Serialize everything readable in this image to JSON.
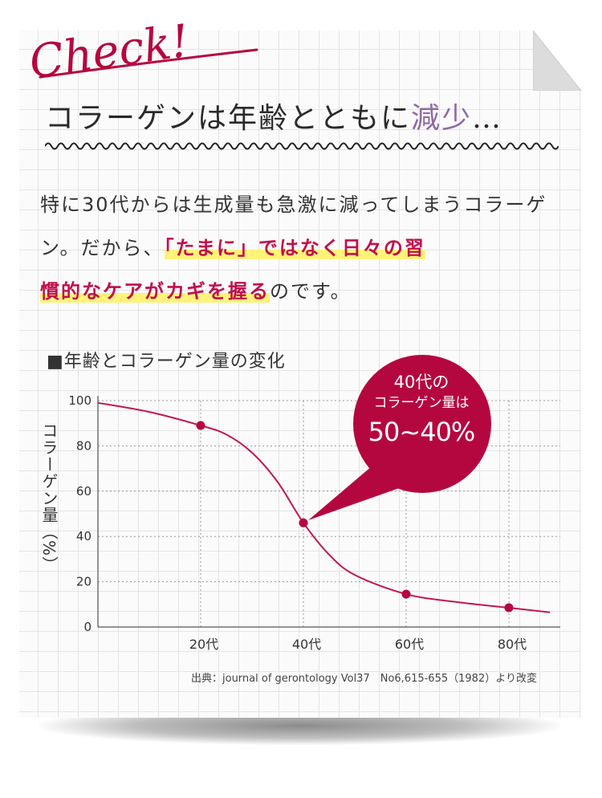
{
  "header": {
    "check_label": "Check!",
    "title_main": "コラーゲンは年齢とともに",
    "title_accent": "減少",
    "title_end": "…"
  },
  "body": {
    "line1": "特に30代からは生成量も急激に減ってしまうコラーゲン。だから、",
    "highlight1": "「たまに」ではなく日々の習",
    "highlight2": "慣的なケアがカギを握る",
    "line_end": "のです。"
  },
  "chart_heading": "■年齢とコラーゲン量の変化",
  "callout": {
    "line1": "40代の",
    "line2": "コラーゲン量は",
    "line3": "50~40%"
  },
  "source": "出典：journal of gerontology Vol37　No6,615-655（1982）より改変",
  "colors": {
    "accent_crimson": "#b5073f",
    "title_purple": "#8f6aa5",
    "highlight_yellow": "#fff37a"
  },
  "chart_data": {
    "type": "line",
    "ylabel": "コラーゲン量（%）",
    "ylim": [
      0,
      100
    ],
    "xlim": [
      0,
      90
    ],
    "yticks": [
      0,
      20,
      40,
      60,
      80,
      100
    ],
    "xticks": [
      20,
      40,
      60,
      80
    ],
    "xtick_labels": [
      "20代",
      "40代",
      "60代",
      "80代"
    ],
    "grid": "dashed",
    "series": [
      {
        "x": [
          0,
          10,
          20,
          25,
          30,
          35,
          40,
          45,
          50,
          60,
          70,
          80,
          88
        ],
        "y": [
          99,
          95,
          89,
          85,
          77,
          64,
          46,
          32,
          23,
          14.5,
          11,
          8.5,
          6.5
        ]
      }
    ],
    "markers": [
      {
        "x": 20,
        "y": 89
      },
      {
        "x": 40,
        "y": 46
      },
      {
        "x": 60,
        "y": 14.5
      },
      {
        "x": 80,
        "y": 8.5
      }
    ]
  }
}
